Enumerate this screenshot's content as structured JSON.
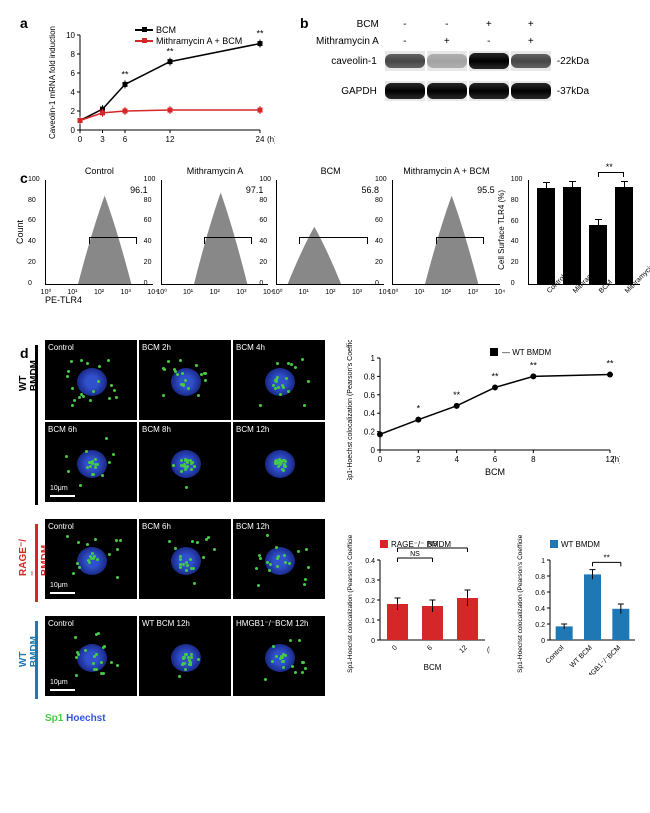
{
  "panels": {
    "a": {
      "label": "a",
      "ylabel": "Caveolin-1 mRNA fold induction",
      "xlabel": "(h)",
      "x": [
        0,
        3,
        6,
        12,
        24
      ],
      "ylim": [
        0,
        10
      ],
      "yticks": [
        0,
        2,
        4,
        6,
        8,
        10
      ],
      "series": [
        {
          "name": "BCM",
          "color": "#000000",
          "y": [
            1,
            2.2,
            4.8,
            7.2,
            9.1
          ],
          "sig": [
            "",
            "",
            "**",
            "**",
            "**"
          ]
        },
        {
          "name": "Mithramycin A + BCM",
          "color": "#d62728",
          "y": [
            1,
            1.8,
            2.0,
            2.1,
            2.1
          ],
          "sig": [
            "",
            "",
            "",
            "",
            ""
          ]
        }
      ]
    },
    "b": {
      "label": "b",
      "conditions": {
        "bcm": [
          "-",
          "-",
          "+",
          "+"
        ],
        "mith": [
          "-",
          "+",
          "-",
          "+"
        ]
      },
      "row_labels": {
        "bcm": "BCM",
        "mith": "Mithramycin A"
      },
      "proteins": [
        {
          "name": "caveolin-1",
          "mw": "-22kDa",
          "bands": [
            "med",
            "weak",
            "strong",
            "med"
          ]
        },
        {
          "name": "GAPDH",
          "mw": "-37kDa",
          "bands": [
            "strong",
            "strong",
            "strong",
            "strong"
          ]
        }
      ]
    },
    "c": {
      "label": "c",
      "ylabel_histo": "Count",
      "xlabel_histo": "PE-TLR4",
      "histograms": [
        {
          "title": "Control",
          "value": 96.1,
          "peak_pos": 0.55,
          "peak_h": 0.85
        },
        {
          "title": "Mithramycin A",
          "value": 97.1,
          "peak_pos": 0.55,
          "peak_h": 0.88
        },
        {
          "title": "BCM",
          "value": 56.8,
          "peak_pos": 0.35,
          "peak_h": 0.55
        },
        {
          "title": "Mithramycin A + BCM",
          "value": 95.5,
          "peak_pos": 0.55,
          "peak_h": 0.85
        }
      ],
      "yticks_histo": [
        0,
        20,
        40,
        60,
        80,
        100
      ],
      "xticks_histo": [
        "10⁰",
        "10¹",
        "10²",
        "10³",
        "10⁴"
      ],
      "barchart": {
        "ylabel": "Cell Surface TLR4 (%)",
        "ylim": [
          0,
          100
        ],
        "yticks": [
          0,
          20,
          40,
          60,
          80,
          100
        ],
        "bars": [
          {
            "label": "Control",
            "value": 92,
            "err": 3
          },
          {
            "label": "Mithramycin A",
            "value": 93,
            "err": 2
          },
          {
            "label": "BCM",
            "value": 57,
            "err": 5
          },
          {
            "label": "Mithramycin A + BCM",
            "value": 93,
            "err": 4
          }
        ],
        "sig": {
          "from": 2,
          "to": 3,
          "text": "**"
        }
      }
    },
    "d": {
      "label": "d",
      "stain_label": {
        "sp1": "Sp1",
        "hoechst": "Hoechst"
      },
      "stain_colors": {
        "sp1": "#44cc44",
        "hoechst": "#3355dd"
      },
      "groups": [
        {
          "name": "WT BMDM",
          "color": "#000000",
          "images": [
            "Control",
            "BCM 2h",
            "BCM 4h",
            "BCM 6h",
            "BCM 8h",
            "BCM 12h"
          ],
          "rows": 2,
          "cols": 3
        },
        {
          "name": "RAGE⁻/⁻ BMDM",
          "color": "#d62728",
          "images": [
            "Control",
            "BCM 6h",
            "BCM 12h"
          ],
          "rows": 1,
          "cols": 3
        },
        {
          "name": "WT BMDM",
          "color": "#1f77b4",
          "images": [
            "Control",
            "WT BCM 12h",
            "HMGB1⁻/⁻BCM 12h"
          ],
          "rows": 1,
          "cols": 3
        }
      ],
      "chart1": {
        "legend": "WT BMDM",
        "ylabel": "Sp1-Hoechst colocalization (Pearson's Coefficient)",
        "xlabel": "BCM",
        "xunit": "(h)",
        "x": [
          0,
          2,
          4,
          6,
          8,
          12
        ],
        "y": [
          0.17,
          0.33,
          0.48,
          0.68,
          0.8,
          0.82
        ],
        "err": [
          0.02,
          0.03,
          0.03,
          0.03,
          0.03,
          0.03
        ],
        "sig": [
          "",
          "*",
          "**",
          "**",
          "**",
          "**"
        ],
        "ylim": [
          0,
          1.0
        ],
        "yticks": [
          0,
          0.2,
          0.4,
          0.6,
          0.8,
          1.0
        ],
        "color": "#000000"
      },
      "chart2": {
        "legend": "RAGE⁻/⁻ BMDM",
        "ylabel": "Sp1-Hoechst colocalization (Pearson's Coefficient)",
        "xlabel": "BCM",
        "xunit": "(h)",
        "x": [
          0,
          6,
          12
        ],
        "y": [
          0.18,
          0.17,
          0.21
        ],
        "err": [
          0.03,
          0.03,
          0.04
        ],
        "sig_brackets": [
          {
            "from": 0,
            "to": 1,
            "text": "NS"
          },
          {
            "from": 0,
            "to": 2,
            "text": "NS"
          }
        ],
        "ylim": [
          0,
          0.4
        ],
        "yticks": [
          0,
          0.1,
          0.2,
          0.3,
          0.4
        ],
        "color": "#d62728"
      },
      "chart3": {
        "legend": "WT BMDM",
        "ylabel": "Sp1-Hoechst colocalization (Pearson's Coefficient)",
        "bars": [
          {
            "label": "Control",
            "value": 0.17,
            "err": 0.03
          },
          {
            "label": "WT BCM",
            "value": 0.82,
            "err": 0.06
          },
          {
            "label": "HMGB1⁻/⁻BCM",
            "value": 0.39,
            "err": 0.06
          }
        ],
        "sig": {
          "from": 1,
          "to": 2,
          "text": "**"
        },
        "ylim": [
          0,
          1.0
        ],
        "yticks": [
          0,
          0.2,
          0.4,
          0.6,
          0.8,
          1.0
        ],
        "color": "#1f77b4"
      }
    }
  }
}
